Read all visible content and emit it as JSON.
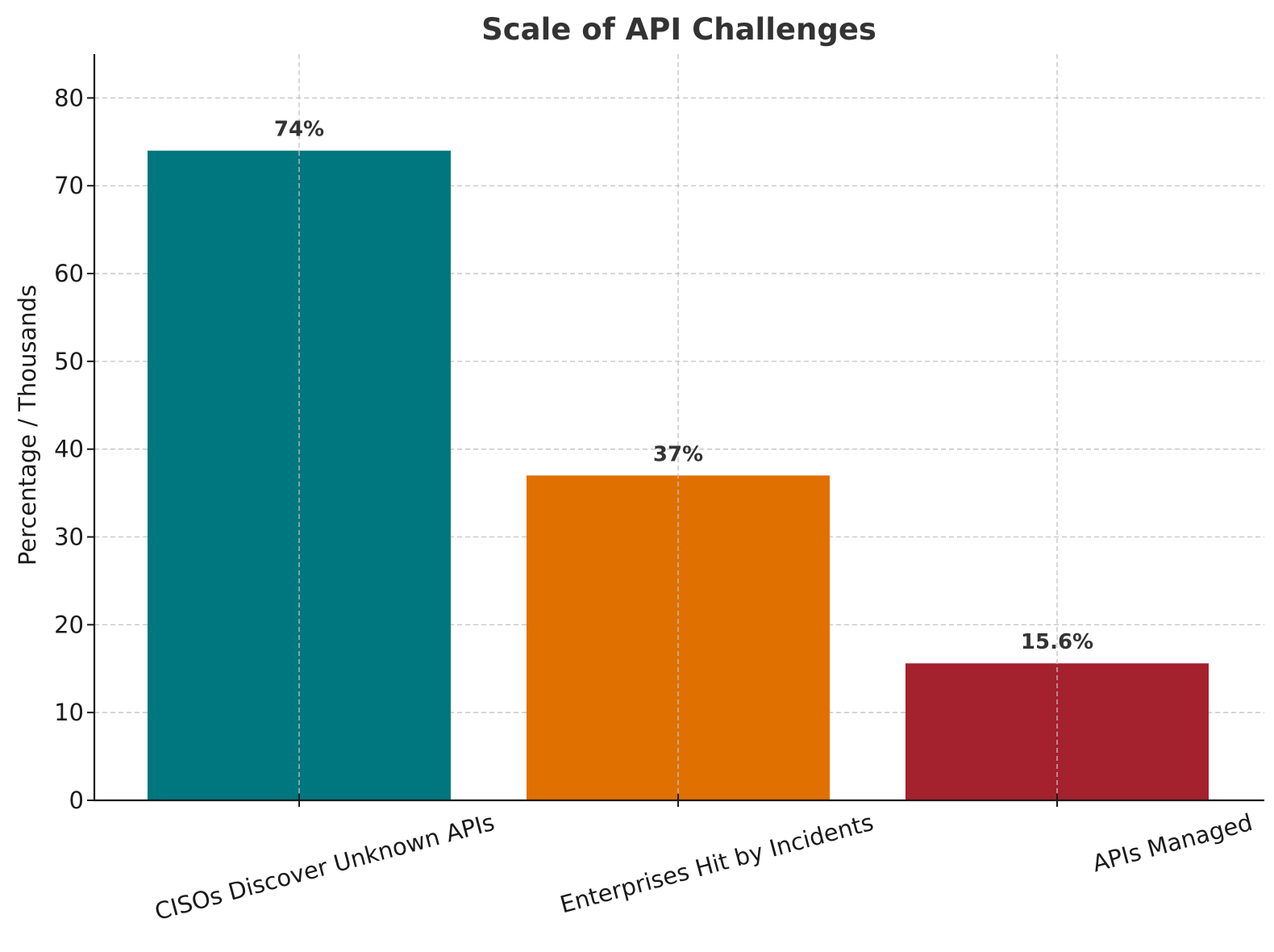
{
  "chart_data": {
    "type": "bar",
    "title": "Scale of API Challenges",
    "xlabel": "",
    "ylabel": "Percentage / Thousands",
    "categories": [
      "CISOs Discover Unknown APIs",
      "Enterprises Hit by Incidents",
      "APIs Managed"
    ],
    "values": [
      74,
      37,
      15.6
    ],
    "value_labels": [
      "74%",
      "37%",
      "15.6%"
    ],
    "colors": [
      "#00767e",
      "#e07000",
      "#a4212e"
    ],
    "ylim": [
      0,
      85
    ],
    "yticks": [
      0,
      10,
      20,
      30,
      40,
      50,
      60,
      70,
      80
    ],
    "grid": true,
    "legend": "none"
  }
}
